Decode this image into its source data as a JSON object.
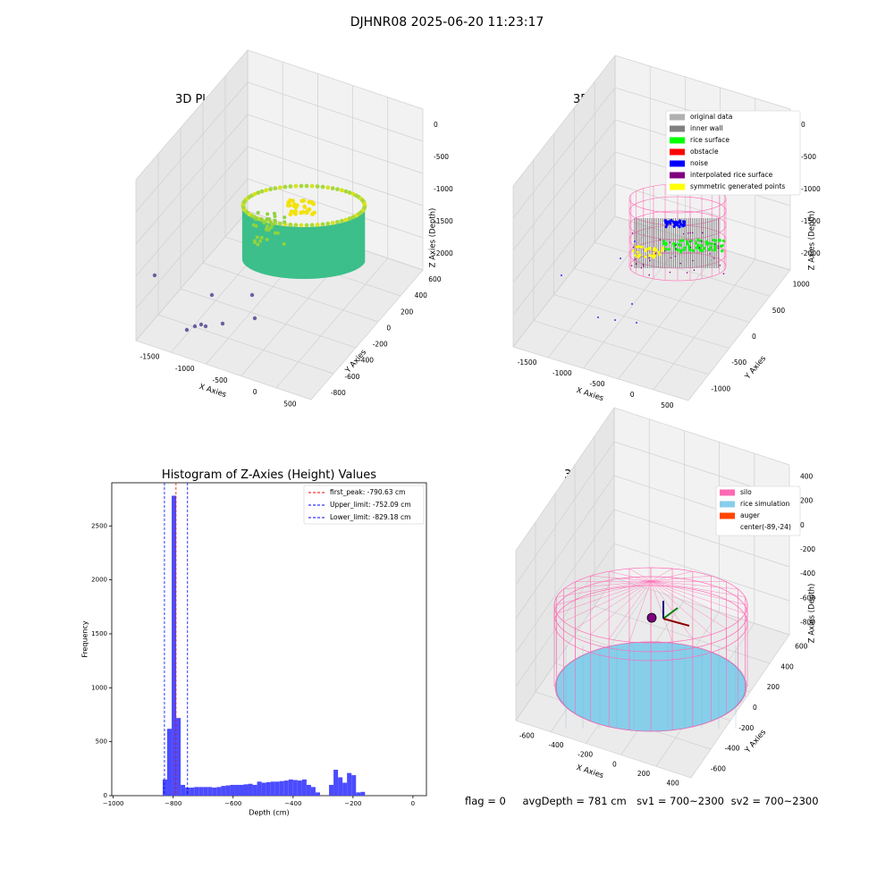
{
  "figure": {
    "suptitle": "DJHNR08 2025-06-20 11:23:17",
    "status": {
      "flag": "flag = 0",
      "avg_depth": "avgDepth = 781 cm",
      "sv1": "sv1 = 700~2300",
      "sv2": "sv2 = 700~2300"
    }
  },
  "colors": {
    "original": "#b0b0b0",
    "inner_wall": "#808080",
    "rice_surface": "#00ff00",
    "obstacle": "#ff0000",
    "noise": "#0000ff",
    "interpolated": "#800080",
    "symmetric": "#ffff00",
    "silo": "#ff69b4",
    "rice_sim": "#87ceeb",
    "auger": "#ff4500",
    "hist_bar": "#4b4bff"
  },
  "chart_data": [
    {
      "type": "scatter",
      "title": "3D Plot of Silo Interior(row data)",
      "xlabel": "X Axies",
      "ylabel": "Y Axies",
      "zlabel": "Z Axies (Depth)",
      "x_ticks": [
        "-1500",
        "-1000",
        "-500",
        "0",
        "500"
      ],
      "y_ticks": [
        "600",
        "400",
        "200",
        "0",
        "-200",
        "-400",
        "-600",
        "-800"
      ],
      "z_ticks": [
        "0",
        "-500",
        "-1000",
        "-1500",
        "-2000"
      ]
    },
    {
      "type": "scatter",
      "title": "3D classify of Silo Interior",
      "xlabel": "X Axies",
      "ylabel": "Y Axies",
      "zlabel": "Z Axies (Depth)",
      "x_ticks": [
        "-1500",
        "-1000",
        "-500",
        "0",
        "500"
      ],
      "y_ticks": [
        "1000",
        "500",
        "0",
        "-500",
        "-1000"
      ],
      "z_ticks": [
        "0",
        "-500",
        "-1000",
        "-1500",
        "-2000"
      ],
      "legend": [
        {
          "label": "original data",
          "color": "#b0b0b0"
        },
        {
          "label": "inner wall",
          "color": "#808080"
        },
        {
          "label": "rice surface",
          "color": "#00ff00"
        },
        {
          "label": "obstacle",
          "color": "#ff0000"
        },
        {
          "label": "noise",
          "color": "#0000ff"
        },
        {
          "label": "interpolated rice surface",
          "color": "#800080"
        },
        {
          "label": "symmetric generated points",
          "color": "#ffff00"
        }
      ]
    },
    {
      "type": "bar",
      "title": "Histogram of Z-Axies (Height) Values",
      "xlabel": "Depth (cm)",
      "ylabel": "Frequency",
      "xlim": [
        -1005,
        45
      ],
      "ylim": [
        0,
        2900
      ],
      "x_ticks": [
        -1000,
        -800,
        -600,
        -400,
        -200,
        0
      ],
      "y_ticks": [
        0,
        500,
        1000,
        1500,
        2000,
        2500
      ],
      "bin_width": 15,
      "bins": [
        {
          "x": -835,
          "y": 150
        },
        {
          "x": -820,
          "y": 620
        },
        {
          "x": -805,
          "y": 2780
        },
        {
          "x": -790,
          "y": 720
        },
        {
          "x": -775,
          "y": 100
        },
        {
          "x": -760,
          "y": 75
        },
        {
          "x": -745,
          "y": 75
        },
        {
          "x": -730,
          "y": 80
        },
        {
          "x": -715,
          "y": 80
        },
        {
          "x": -700,
          "y": 80
        },
        {
          "x": -685,
          "y": 80
        },
        {
          "x": -670,
          "y": 75
        },
        {
          "x": -655,
          "y": 80
        },
        {
          "x": -640,
          "y": 90
        },
        {
          "x": -625,
          "y": 95
        },
        {
          "x": -610,
          "y": 100
        },
        {
          "x": -595,
          "y": 100
        },
        {
          "x": -580,
          "y": 100
        },
        {
          "x": -565,
          "y": 105
        },
        {
          "x": -550,
          "y": 110
        },
        {
          "x": -535,
          "y": 100
        },
        {
          "x": -520,
          "y": 130
        },
        {
          "x": -505,
          "y": 120
        },
        {
          "x": -490,
          "y": 125
        },
        {
          "x": -475,
          "y": 130
        },
        {
          "x": -460,
          "y": 130
        },
        {
          "x": -445,
          "y": 135
        },
        {
          "x": -430,
          "y": 140
        },
        {
          "x": -415,
          "y": 150
        },
        {
          "x": -400,
          "y": 145
        },
        {
          "x": -385,
          "y": 140
        },
        {
          "x": -370,
          "y": 150
        },
        {
          "x": -355,
          "y": 100
        },
        {
          "x": -340,
          "y": 80
        },
        {
          "x": -325,
          "y": 30
        },
        {
          "x": -310,
          "y": 0
        },
        {
          "x": -295,
          "y": 0
        },
        {
          "x": -280,
          "y": 100
        },
        {
          "x": -265,
          "y": 240
        },
        {
          "x": -250,
          "y": 170
        },
        {
          "x": -235,
          "y": 120
        },
        {
          "x": -220,
          "y": 210
        },
        {
          "x": -205,
          "y": 190
        },
        {
          "x": -190,
          "y": 30
        },
        {
          "x": -175,
          "y": 35
        }
      ],
      "lines": [
        {
          "label": "first_peak: -790.63 cm",
          "x": -790.63,
          "color": "#ff0000"
        },
        {
          "label": "Upper_limit: -752.09 cm",
          "x": -752.09,
          "color": "#0000ff"
        },
        {
          "label": "Lower_limit: -829.18 cm",
          "x": -829.18,
          "color": "#0000ff"
        }
      ]
    },
    {
      "type": "scatter",
      "title": "3D simulation of Silo Interior",
      "xlabel": "X Axies",
      "ylabel": "Y Axies",
      "zlabel": "Z Axies (Depth)",
      "x_ticks": [
        "-600",
        "-400",
        "-200",
        "0",
        "200",
        "400"
      ],
      "y_ticks": [
        "600",
        "400",
        "200",
        "0",
        "-200",
        "-400",
        "-600"
      ],
      "z_ticks": [
        "400",
        "200",
        "0",
        "-200",
        "-400",
        "-600",
        "-800"
      ],
      "legend": [
        {
          "label": "silo",
          "color": "#ff69b4"
        },
        {
          "label": "rice simulation",
          "color": "#87ceeb"
        },
        {
          "label": "auger",
          "color": "#ff4500"
        },
        {
          "label": "center(-89,-24)",
          "color": ""
        }
      ]
    }
  ]
}
